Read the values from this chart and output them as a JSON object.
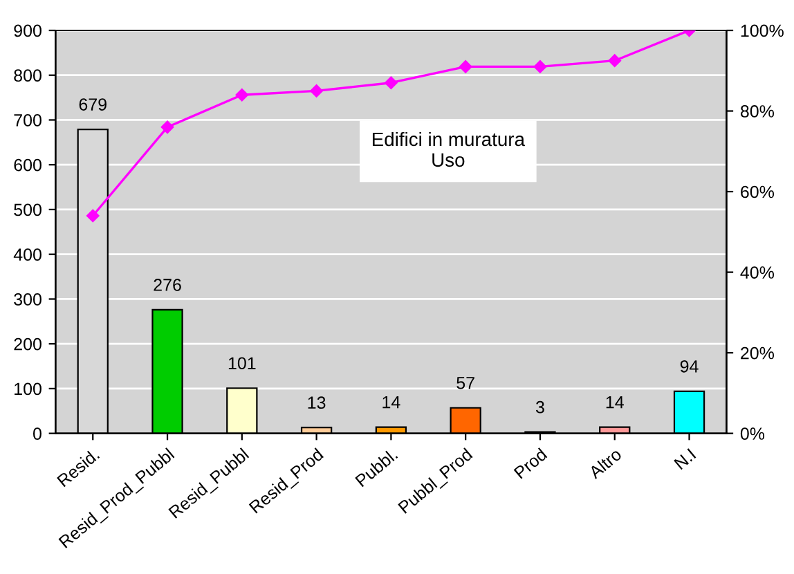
{
  "chart_data": {
    "type": "bar",
    "title": "Edifici in muratura\nUso",
    "categories": [
      "Resid.",
      "Resid_Prod_Pubbl",
      "Resid_Pubbl",
      "Resid_Prod",
      "Pubbl.",
      "Pubbl_Prod",
      "Prod",
      "Altro",
      "N.I"
    ],
    "series": [
      {
        "values": [
          679,
          276,
          101,
          13,
          14,
          57,
          3,
          14,
          94
        ],
        "value_labels": [
          "679",
          "276",
          "101",
          "13",
          "14",
          "57",
          "3",
          "14",
          "94"
        ],
        "colors": [
          "#d8d8d8",
          "#00cc00",
          "#ffffcc",
          "#ffcc99",
          "#ff9900",
          "#ff6600",
          "#999999",
          "#ff9999",
          "#00ffff"
        ]
      },
      {
        "type": "line",
        "axis": "y2",
        "color": "#ff00ff",
        "marker": "diamond",
        "values": [
          54,
          76,
          84,
          85,
          87,
          91,
          91,
          92.5,
          100
        ]
      }
    ],
    "ylim": [
      0,
      900
    ],
    "yticks": [
      0,
      100,
      200,
      300,
      400,
      500,
      600,
      700,
      800,
      900
    ],
    "y2lim": [
      0,
      100
    ],
    "y2ticks": [
      {
        "value": 0,
        "label": "0%"
      },
      {
        "value": 20,
        "label": "20%"
      },
      {
        "value": 40,
        "label": "40%"
      },
      {
        "value": 60,
        "label": "60%"
      },
      {
        "value": 80,
        "label": "80%"
      },
      {
        "value": 100,
        "label": "100%"
      }
    ],
    "grid": "y"
  }
}
